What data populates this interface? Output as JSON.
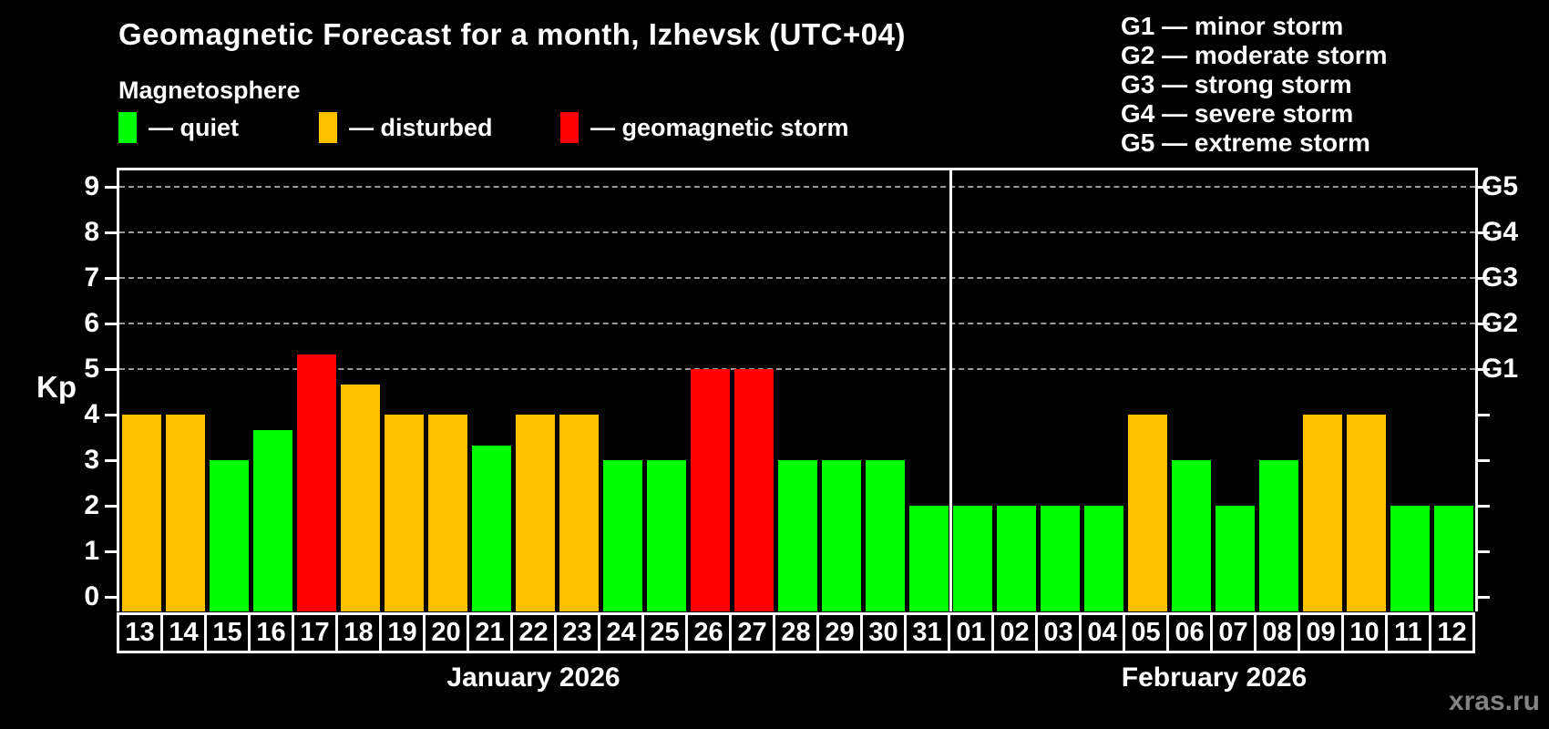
{
  "header": {
    "title": "Geomagnetic Forecast for a month, Izhevsk (UTC+04)",
    "subtitle": "Magnetosphere"
  },
  "legend": {
    "items": [
      {
        "key": "quiet",
        "label": "— quiet",
        "color": "#00ff00"
      },
      {
        "key": "disturbed",
        "label": "— disturbed",
        "color": "#ffc000"
      },
      {
        "key": "storm",
        "label": "— geomagnetic storm",
        "color": "#ff0000"
      }
    ]
  },
  "storm_scale_legend": {
    "items": [
      "G1 — minor storm",
      "G2 — moderate storm",
      "G3 — strong storm",
      "G4 — severe storm",
      "G5 — extreme storm"
    ]
  },
  "watermark": "xras.ru",
  "chart_data": {
    "type": "bar",
    "title": "Geomagnetic Forecast for a month, Izhevsk (UTC+04)",
    "ylabel": "Kp",
    "ylim": [
      0,
      9
    ],
    "yticks": [
      0,
      1,
      2,
      3,
      4,
      5,
      6,
      7,
      8,
      9
    ],
    "gridlines_at": [
      5,
      6,
      7,
      8,
      9
    ],
    "grid_color": "#999999",
    "right_axis_labels": [
      {
        "kp": 5,
        "label": "G1"
      },
      {
        "kp": 6,
        "label": "G2"
      },
      {
        "kp": 7,
        "label": "G3"
      },
      {
        "kp": 8,
        "label": "G4"
      },
      {
        "kp": 9,
        "label": "G5"
      }
    ],
    "colors": {
      "quiet": "#00ff00",
      "disturbed": "#ffc000",
      "storm": "#ff0000"
    },
    "months": [
      {
        "label": "January 2026",
        "days": [
          {
            "date": "13",
            "kp": 4,
            "status": "disturbed"
          },
          {
            "date": "14",
            "kp": 4,
            "status": "disturbed"
          },
          {
            "date": "15",
            "kp": 3,
            "status": "quiet"
          },
          {
            "date": "16",
            "kp": 3.67,
            "status": "quiet"
          },
          {
            "date": "17",
            "kp": 5.33,
            "status": "storm"
          },
          {
            "date": "18",
            "kp": 4.67,
            "status": "disturbed"
          },
          {
            "date": "19",
            "kp": 4,
            "status": "disturbed"
          },
          {
            "date": "20",
            "kp": 4,
            "status": "disturbed"
          },
          {
            "date": "21",
            "kp": 3.33,
            "status": "quiet"
          },
          {
            "date": "22",
            "kp": 4,
            "status": "disturbed"
          },
          {
            "date": "23",
            "kp": 4,
            "status": "disturbed"
          },
          {
            "date": "24",
            "kp": 3,
            "status": "quiet"
          },
          {
            "date": "25",
            "kp": 3,
            "status": "quiet"
          },
          {
            "date": "26",
            "kp": 5,
            "status": "storm"
          },
          {
            "date": "27",
            "kp": 5,
            "status": "storm"
          },
          {
            "date": "28",
            "kp": 3,
            "status": "quiet"
          },
          {
            "date": "29",
            "kp": 3,
            "status": "quiet"
          },
          {
            "date": "30",
            "kp": 3,
            "status": "quiet"
          },
          {
            "date": "31",
            "kp": 2,
            "status": "quiet"
          }
        ]
      },
      {
        "label": "February 2026",
        "days": [
          {
            "date": "01",
            "kp": 2,
            "status": "quiet"
          },
          {
            "date": "02",
            "kp": 2,
            "status": "quiet"
          },
          {
            "date": "03",
            "kp": 2,
            "status": "quiet"
          },
          {
            "date": "04",
            "kp": 2,
            "status": "quiet"
          },
          {
            "date": "05",
            "kp": 4,
            "status": "disturbed"
          },
          {
            "date": "06",
            "kp": 3,
            "status": "quiet"
          },
          {
            "date": "07",
            "kp": 2,
            "status": "quiet"
          },
          {
            "date": "08",
            "kp": 3,
            "status": "quiet"
          },
          {
            "date": "09",
            "kp": 4,
            "status": "disturbed"
          },
          {
            "date": "10",
            "kp": 4,
            "status": "disturbed"
          },
          {
            "date": "11",
            "kp": 2,
            "status": "quiet"
          },
          {
            "date": "12",
            "kp": 2,
            "status": "quiet"
          }
        ]
      }
    ]
  }
}
